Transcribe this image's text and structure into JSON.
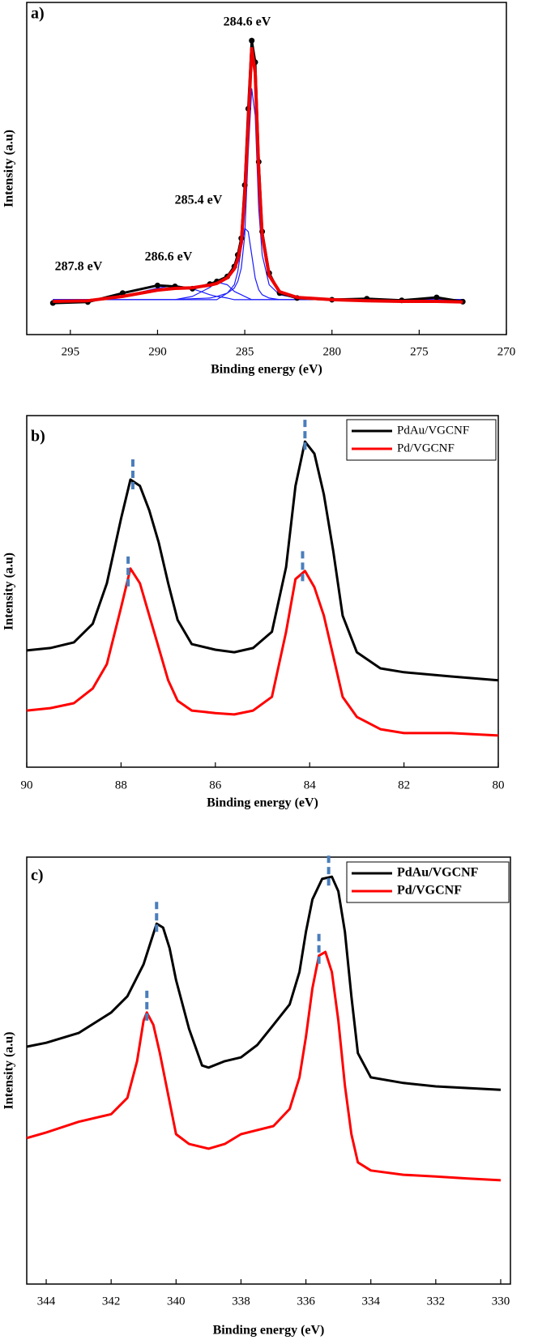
{
  "chart_data": [
    {
      "type": "line",
      "panel_label": "a)",
      "xlabel": "Binding energy (eV)",
      "ylabel": "Intensity (a.u)",
      "annotations": [
        "284.6 eV",
        "285.4 eV",
        "286.6 eV",
        "287.8 eV"
      ],
      "xlim": [
        297.5,
        270
      ],
      "xticks": [
        295,
        290,
        285,
        280,
        275,
        270
      ],
      "ylim": [
        0,
        100
      ],
      "x": [
        296,
        294,
        292,
        290,
        289,
        288,
        287,
        286.6,
        286,
        285.6,
        285.4,
        285.2,
        285,
        284.8,
        284.6,
        284.4,
        284.2,
        284,
        283.6,
        283,
        282,
        280,
        278,
        276,
        274,
        272.5
      ],
      "series": [
        {
          "color": "#1a1aff",
          "width": 1.2,
          "values": [
            10.5,
            10.5,
            10.5,
            10.5,
            10.5,
            10.8,
            11,
            11.5,
            12.5,
            14,
            16,
            20,
            30,
            55,
            74,
            66,
            38,
            24,
            15,
            12,
            11,
            10.5,
            10.5,
            10.5,
            10.5,
            10.5
          ]
        },
        {
          "color": "#1a1aff",
          "width": 1.2,
          "values": [
            10.5,
            10.5,
            10.5,
            10.5,
            10.5,
            10.5,
            10.5,
            10.5,
            12.5,
            15,
            19,
            26,
            32,
            31,
            24,
            17,
            13.5,
            12,
            11,
            10.5,
            10.5,
            10.5,
            10.5,
            10.5,
            10.5,
            10.5
          ]
        },
        {
          "color": "#1a1aff",
          "width": 1.2,
          "values": [
            10.5,
            10.5,
            10.5,
            10.5,
            10.5,
            11.5,
            14.2,
            15.8,
            15,
            13,
            12.5,
            12,
            11.5,
            11,
            10.5,
            10.5,
            10.5,
            10.5,
            10.5,
            10.5,
            10.5,
            10.5,
            10.5,
            10.5,
            10.5,
            10.5
          ]
        },
        {
          "color": "#1a1aff",
          "width": 1.2,
          "values": [
            10.5,
            10.5,
            11.5,
            14,
            14.8,
            13.8,
            12,
            11.5,
            11,
            10.5,
            10.5,
            10.5,
            10.5,
            10.5,
            10.5,
            10.5,
            10.5,
            10.5,
            10.5,
            10.5,
            10.5,
            10.5,
            10.5,
            10.5,
            10.5,
            10.5
          ]
        },
        {
          "color": "#000000",
          "width": 3,
          "markers": true,
          "values": [
            9.5,
            9.8,
            12.5,
            14.8,
            14.5,
            13.8,
            15.2,
            16,
            17.5,
            20.5,
            24,
            29,
            45,
            68,
            88.5,
            82,
            52,
            31,
            18.5,
            12.5,
            11,
            10.5,
            10.8,
            10.3,
            11.2,
            9.9
          ]
        },
        {
          "color": "#ee0000",
          "width": 4,
          "values": [
            10,
            10.2,
            11.5,
            13.4,
            13.9,
            14.1,
            14.9,
            15.4,
            17.1,
            19.8,
            22.7,
            27.6,
            42.2,
            64.1,
            86.1,
            78.8,
            49.5,
            30,
            17.8,
            12.9,
            11.2,
            10.5,
            10.2,
            10,
            10,
            9.8
          ]
        }
      ]
    },
    {
      "type": "line",
      "panel_label": "b)",
      "xlabel": "Binding energy (eV)",
      "ylabel": "Intensity (a.u)",
      "legend": "upper right",
      "legend_bold": false,
      "xlim": [
        90,
        80
      ],
      "xticks": [
        90,
        88,
        86,
        84,
        82,
        80
      ],
      "ylim": [
        0,
        100
      ],
      "x": [
        90,
        89.5,
        89,
        88.6,
        88.3,
        88,
        87.8,
        87.6,
        87.4,
        87.2,
        87,
        86.8,
        86.5,
        86,
        85.6,
        85.2,
        84.8,
        84.5,
        84.3,
        84.1,
        83.9,
        83.7,
        83.5,
        83.3,
        83,
        82.5,
        82,
        81,
        80
      ],
      "marker_color": "#4a7ebb",
      "series": [
        {
          "name": "PdAu/VGCNF",
          "color": "#000000",
          "width": 3,
          "peaks": [
            87.75,
            84.1
          ],
          "values": [
            33.2,
            33.9,
            35.5,
            40.8,
            52.3,
            70.7,
            81.8,
            80,
            73,
            63.8,
            52.3,
            41.9,
            35,
            33.4,
            32.7,
            33.9,
            38.5,
            56.9,
            80,
            92.6,
            89.2,
            77.6,
            61.5,
            43.1,
            32.7,
            28.1,
            27,
            25.8,
            24.7
          ]
        },
        {
          "name": "Pd/VGCNF",
          "color": "#ff0000",
          "width": 3,
          "peaks": [
            87.85,
            84.15
          ],
          "values": [
            16.1,
            16.8,
            18.2,
            22.4,
            29.3,
            45.4,
            56.5,
            52.3,
            43.1,
            33.9,
            24.7,
            18.9,
            16.1,
            15.4,
            15,
            16.1,
            20,
            38.5,
            53.5,
            55.8,
            51.2,
            43.1,
            31.6,
            20,
            14.3,
            10.8,
            9.7,
            9.7,
            9
          ]
        }
      ]
    },
    {
      "type": "line",
      "panel_label": "c)",
      "xlabel": "Binding energy (eV)",
      "ylabel": "Intensity (a.u)",
      "legend": "upper right",
      "legend_bold": true,
      "xlim": [
        344.6,
        329.7
      ],
      "xticks": [
        344,
        342,
        340,
        338,
        336,
        334,
        332,
        330
      ],
      "ylim": [
        0,
        100
      ],
      "marker_color": "#4a7ebb",
      "series": [
        {
          "name": "PdAu/VGCNF",
          "color": "#000000",
          "width": 3,
          "peaks": [
            340.6,
            335.3
          ],
          "x": [
            344.6,
            344,
            343,
            342,
            341.5,
            341,
            340.8,
            340.6,
            340.4,
            340.2,
            340,
            339.6,
            339.2,
            339,
            338.5,
            338,
            337.5,
            337,
            336.5,
            336.2,
            336,
            335.8,
            335.5,
            335.2,
            335,
            334.8,
            334.6,
            334.4,
            334,
            333,
            332,
            331,
            330
          ],
          "values": [
            55.6,
            56.5,
            58.8,
            63.6,
            67.4,
            74.9,
            79.7,
            84.4,
            83.5,
            78.7,
            71.2,
            59.8,
            51.2,
            50.7,
            52.2,
            53.1,
            56,
            60.7,
            65.5,
            73.1,
            82.5,
            90.1,
            94.9,
            95.4,
            92,
            82.5,
            67.4,
            54.1,
            48.4,
            47.1,
            46.3,
            45.9,
            45.5
          ]
        },
        {
          "name": "Pd/VGCNF",
          "color": "#ff0000",
          "width": 3,
          "peaks": [
            340.9,
            335.6
          ],
          "x": [
            344.6,
            344,
            343,
            342,
            341.5,
            341.2,
            341,
            340.9,
            340.7,
            340.5,
            340.2,
            340,
            339.6,
            339,
            338.5,
            338,
            337,
            336.5,
            336.2,
            336,
            335.8,
            335.6,
            335.4,
            335.2,
            335,
            334.8,
            334.6,
            334.4,
            334,
            333,
            332,
            331,
            330
          ],
          "values": [
            34.2,
            35.5,
            38,
            39.8,
            43.6,
            52.2,
            61.7,
            63.6,
            60.7,
            54.1,
            42.7,
            35.1,
            32.8,
            31.7,
            32.8,
            35.1,
            37,
            41,
            48.4,
            57.9,
            69.3,
            76.9,
            77.8,
            73.1,
            61.7,
            46.5,
            35.1,
            28.5,
            26.6,
            25.6,
            25.2,
            24.7,
            24.3
          ]
        }
      ]
    }
  ]
}
